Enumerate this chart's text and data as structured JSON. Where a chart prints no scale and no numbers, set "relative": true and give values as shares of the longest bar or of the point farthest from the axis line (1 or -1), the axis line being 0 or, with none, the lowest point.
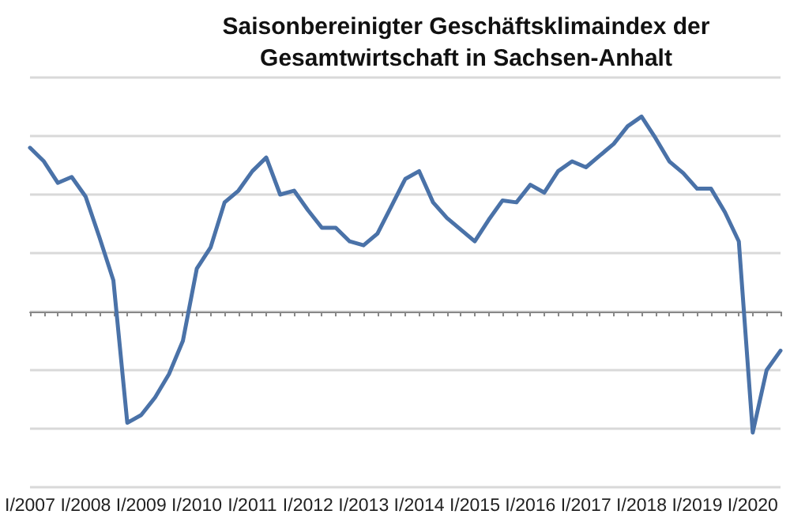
{
  "chart_data": {
    "type": "line",
    "title": "Saisonbereinigter Geschäftsklimaindex der\nGesamtwirtschaft in Sachsen-Anhalt",
    "relative": true,
    "grid": "y",
    "marker": "none",
    "line_style": "solid",
    "categories": [
      "I/2007",
      null,
      null,
      null,
      "I/2008",
      null,
      null,
      null,
      "I/2009",
      null,
      null,
      null,
      "I/2010",
      null,
      null,
      null,
      "I/2011",
      null,
      null,
      null,
      "I/2012",
      null,
      null,
      null,
      "I/2013",
      null,
      null,
      null,
      "I/2014",
      null,
      null,
      null,
      "I/2015",
      null,
      null,
      null,
      "I/2016",
      null,
      null,
      null,
      "I/2017",
      null,
      null,
      null,
      "I/2018",
      null,
      null,
      null,
      "I/2019",
      null,
      null,
      null,
      "I/2020",
      null,
      null
    ],
    "series": [
      {
        "color": "#4a72a8",
        "values": [
          0.84,
          0.77,
          0.66,
          0.69,
          0.59,
          0.38,
          0.16,
          -0.57,
          -0.53,
          -0.44,
          -0.32,
          -0.15,
          0.22,
          0.33,
          0.56,
          0.62,
          0.72,
          0.79,
          0.6,
          0.62,
          0.52,
          0.43,
          0.43,
          0.36,
          0.34,
          0.4,
          0.54,
          0.68,
          0.72,
          0.56,
          0.48,
          0.42,
          0.36,
          0.47,
          0.57,
          0.56,
          0.65,
          0.61,
          0.72,
          0.77,
          0.74,
          0.8,
          0.86,
          0.95,
          1.0,
          0.89,
          0.77,
          0.71,
          0.63,
          0.63,
          0.51,
          0.36,
          -0.62,
          -0.3,
          -0.2
        ]
      }
    ]
  }
}
